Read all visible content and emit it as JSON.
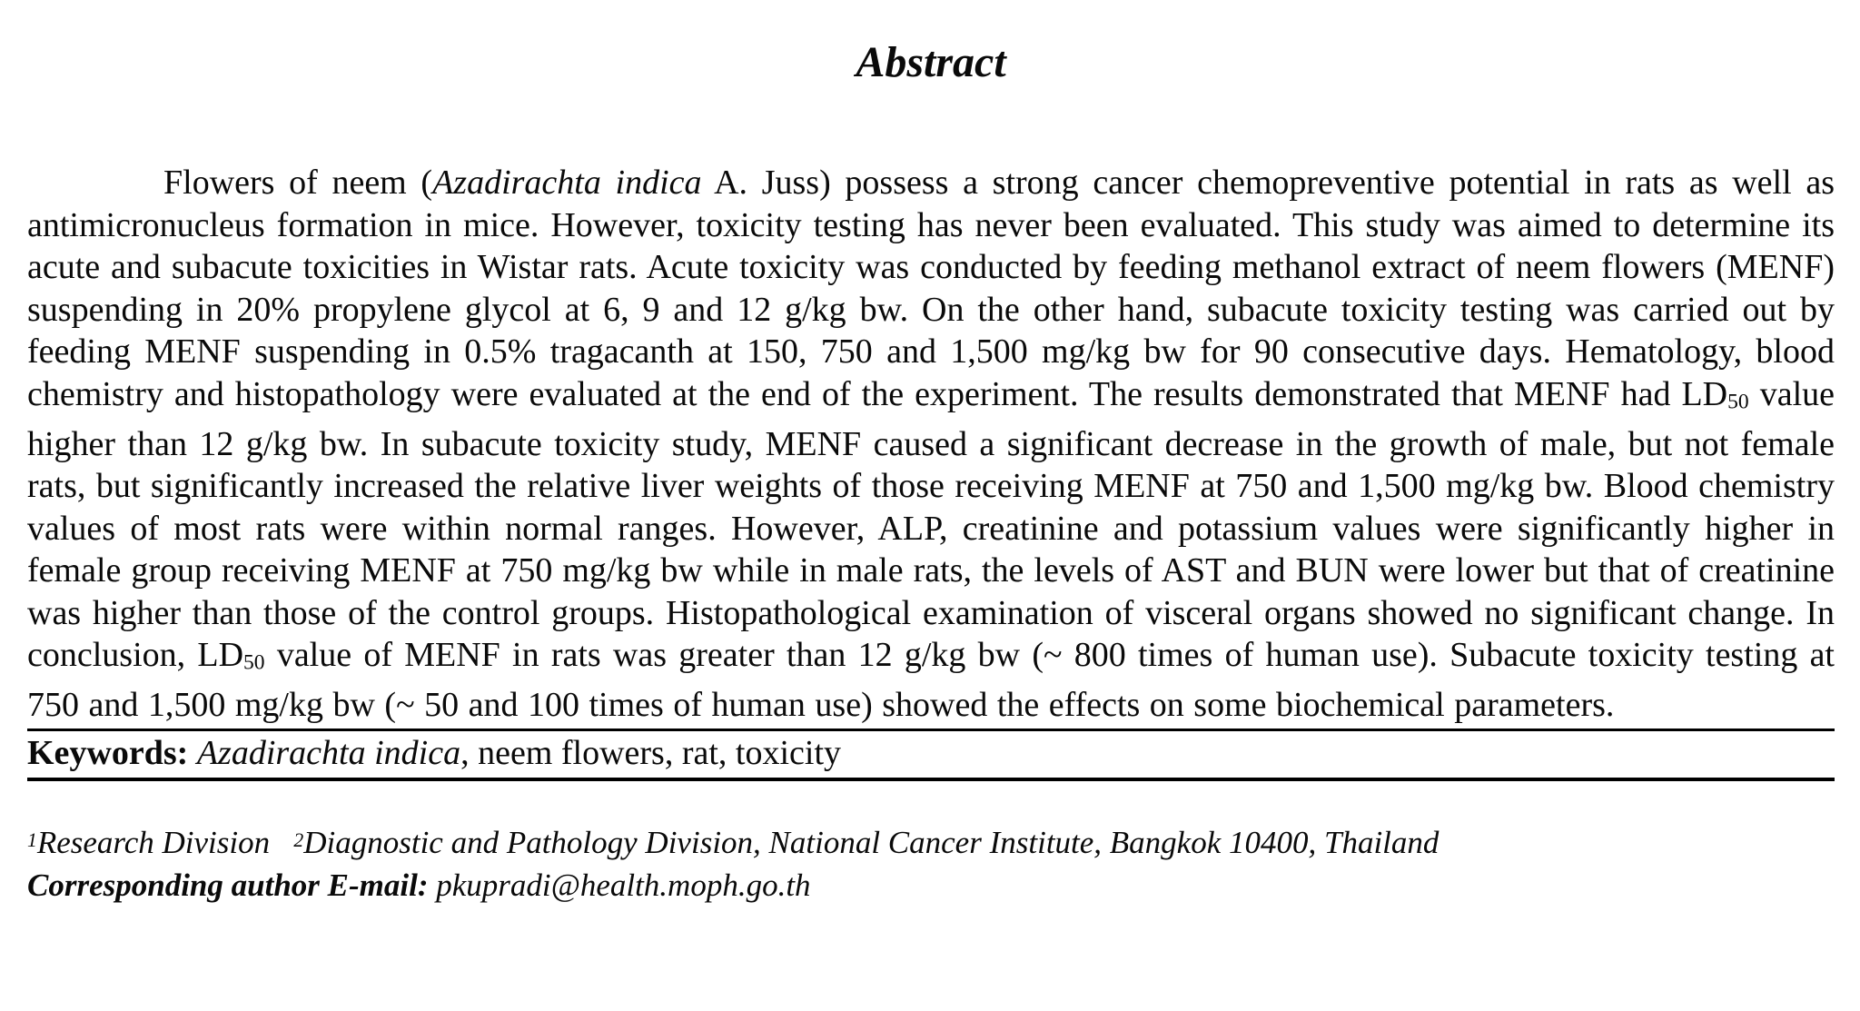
{
  "colors": {
    "text": "#0a0a0a",
    "background": "#ffffff",
    "rule": "#000000"
  },
  "title": "Abstract",
  "abstract": {
    "segments": [
      {
        "text": "Flowers of neem (",
        "style": "normal"
      },
      {
        "text": "Azadirachta indica",
        "style": "italic"
      },
      {
        "text": " A. Juss) possess a strong cancer chemopreventive potential in rats as well as antimicronucleus formation in mice. However, toxicity testing has never been evaluated. This study was aimed to determine its acute and subacute toxicities in Wistar rats. Acute toxicity was conducted by feeding methanol extract of neem flowers (MENF) suspending in 20% propylene glycol at 6, 9 and 12 g/kg bw. On the other hand, subacute toxicity testing was carried out by feeding MENF suspending in 0.5% tragacanth at 150, 750 and 1,500 mg/kg bw for 90 consecutive days. Hematology, blood chemistry and histopathology were evaluated at the end of the experiment. The results demonstrated that MENF had LD",
        "style": "normal"
      },
      {
        "text": "50",
        "style": "sub"
      },
      {
        "text": " value higher than 12 g/kg bw. In subacute toxicity study, MENF caused a significant decrease in the growth of male, but not female rats, but significantly increased the relative liver weights of those receiving MENF at 750 and 1,500 mg/kg bw. Blood chemistry values of most rats were within normal ranges. However, ALP, creatinine and potassium values were significantly higher in female group receiving MENF at 750 mg/kg bw while in male rats, the levels of AST and BUN were lower but that of creatinine was higher than those of the control groups. Histopathological examination of visceral organs showed no significant change. In conclusion, LD",
        "style": "normal"
      },
      {
        "text": "50",
        "style": "sub"
      },
      {
        "text": " value of MENF in rats was greater than 12 g/kg bw (~ 800 times of human use). Subacute toxicity testing at 750 and 1,500 mg/kg bw (~ 50 and 100 times of human use) showed the effects on some biochemical parameters.",
        "style": "normal"
      }
    ]
  },
  "keywords": {
    "segments": [
      {
        "text": "Keywords: ",
        "style": "bold"
      },
      {
        "text": "Azadirachta indica",
        "style": "italic"
      },
      {
        "text": ", neem flowers, rat, toxicity",
        "style": "normal"
      }
    ]
  },
  "footer": {
    "affiliations": [
      {
        "text": "1",
        "style": "sup"
      },
      {
        "text": "Research Division  ",
        "style": "normal"
      },
      {
        "text": "2",
        "style": "sup"
      },
      {
        "text": "Diagnostic and Pathology Division, National Cancer Institute, Bangkok 10400, Thailand",
        "style": "normal"
      }
    ],
    "corresponding": [
      {
        "text": "Corresponding author E-mail: ",
        "style": "bold"
      },
      {
        "text": "pkupradi@health.moph.go.th",
        "style": "normal"
      }
    ]
  }
}
